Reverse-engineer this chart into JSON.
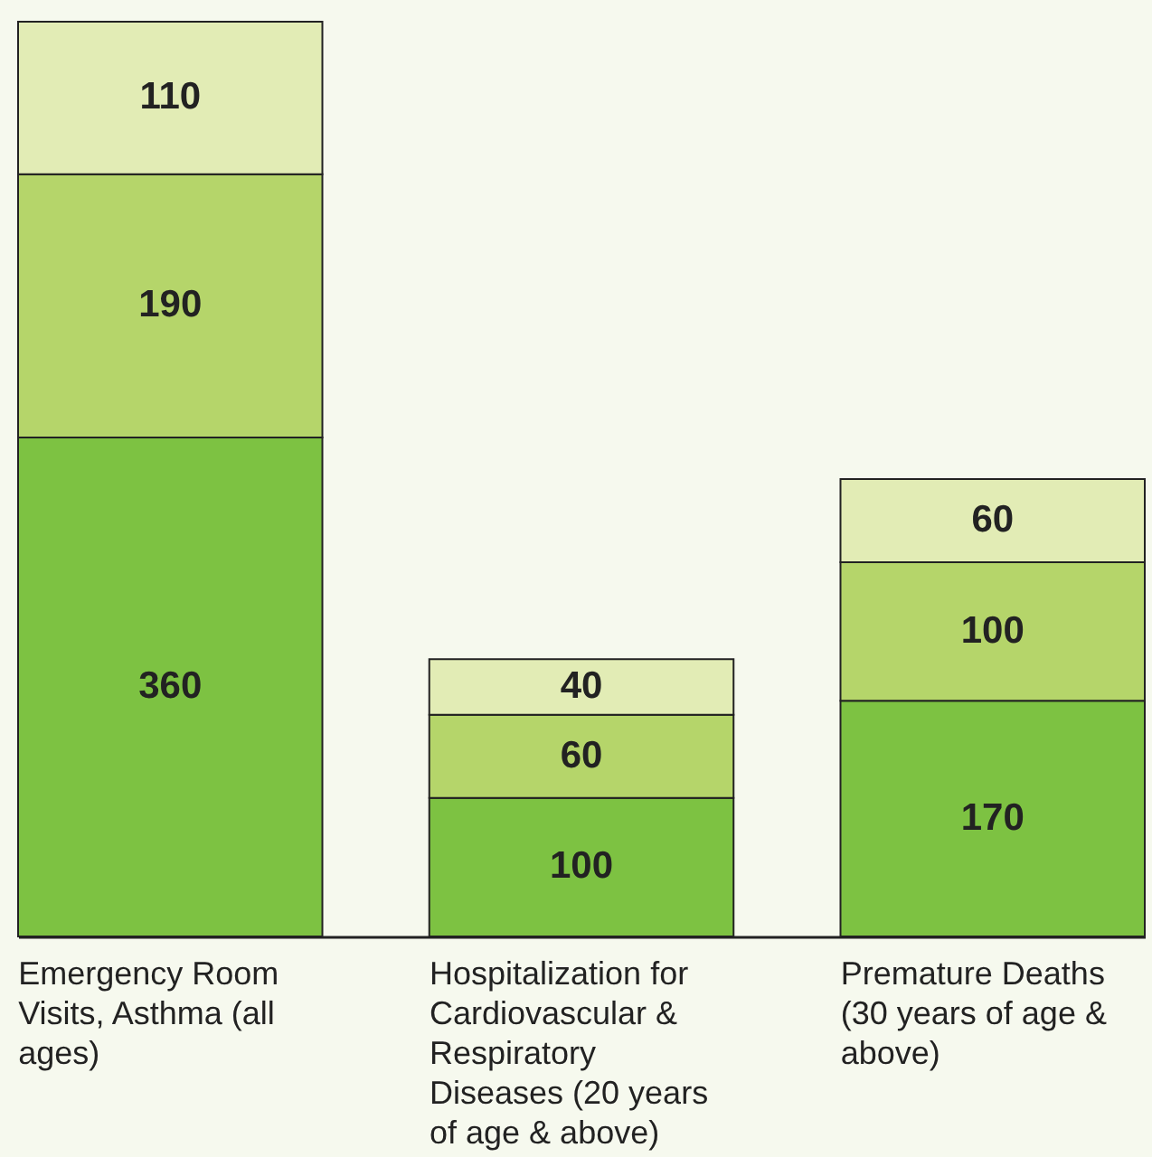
{
  "chart_data": {
    "type": "bar",
    "stacked": true,
    "data_labels": true,
    "categories": [
      "Emergency Room Visits, Asthma (all ages)",
      "Hospitalization for Cardiovascular & Respiratory Diseases (20 years of age & above)",
      "Premature Deaths (30 years of age & above)"
    ],
    "series": [
      {
        "color": "#7dc242",
        "values": [
          360,
          100,
          170
        ]
      },
      {
        "color": "#b5d56a",
        "values": [
          190,
          60,
          100
        ]
      },
      {
        "color": "#e2ecb5",
        "values": [
          110,
          40,
          60
        ]
      }
    ]
  }
}
